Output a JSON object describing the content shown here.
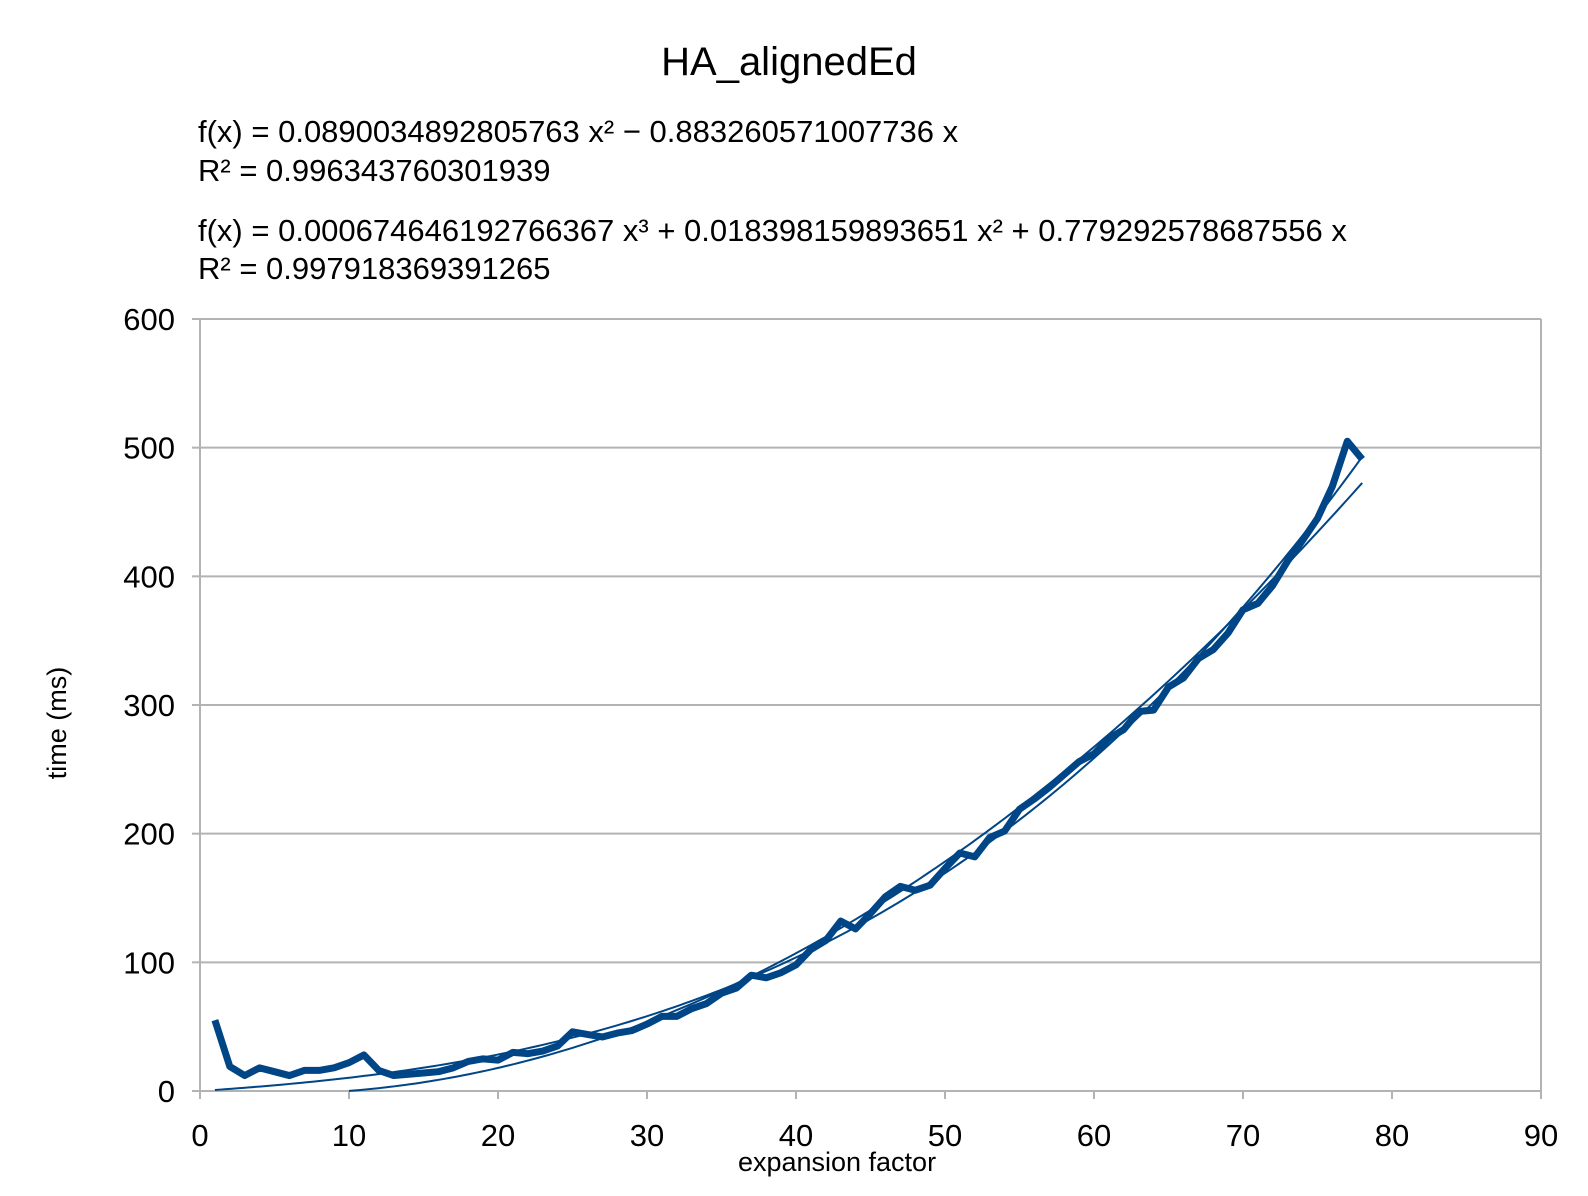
{
  "chart_data": {
    "type": "line",
    "title": "HA_alignedEd",
    "xlabel": "expansion factor",
    "ylabel": "time (ms)",
    "xlim": [
      0,
      90
    ],
    "ylim": [
      0,
      600
    ],
    "x_ticks": [
      0,
      10,
      20,
      30,
      40,
      50,
      60,
      70,
      80,
      90
    ],
    "y_ticks": [
      0,
      100,
      200,
      300,
      400,
      500,
      600
    ],
    "grid": {
      "horizontal": true,
      "vertical": false
    },
    "legend": "none",
    "series": [
      {
        "color": "#004586",
        "x": [
          1,
          2,
          3,
          4,
          5,
          6,
          7,
          8,
          9,
          10,
          11,
          12,
          13,
          14,
          15,
          16,
          17,
          18,
          19,
          20,
          21,
          22,
          23,
          24,
          25,
          26,
          27,
          28,
          29,
          30,
          31,
          32,
          33,
          34,
          35,
          36,
          37,
          38,
          39,
          40,
          41,
          42,
          43,
          44,
          45,
          46,
          47,
          48,
          49,
          50,
          51,
          52,
          53,
          54,
          55,
          56,
          57,
          58,
          59,
          60,
          61,
          62,
          63,
          64,
          65,
          66,
          67,
          68,
          69,
          70,
          71,
          72,
          73,
          74,
          75,
          76,
          77,
          78
        ],
        "values": [
          55,
          19,
          12,
          18,
          15,
          12,
          16,
          16,
          18,
          22,
          28,
          16,
          12,
          13,
          14,
          15,
          18,
          23,
          25,
          24,
          30,
          29,
          31,
          35,
          46,
          44,
          42,
          45,
          47,
          52,
          58,
          58,
          64,
          68,
          76,
          80,
          90,
          88,
          92,
          98,
          110,
          117,
          132,
          126,
          138,
          151,
          159,
          156,
          160,
          173,
          185,
          182,
          197,
          202,
          219,
          227,
          236,
          246,
          256,
          262,
          274,
          281,
          295,
          296,
          314,
          321,
          336,
          343,
          356,
          374,
          379,
          393,
          412,
          428,
          445,
          470,
          505,
          491
        ]
      }
    ],
    "trendlines": [
      {
        "type": "quadratic",
        "color": "#004586",
        "coefficients": {
          "a": 0.0890034892805763,
          "b": -0.883260571007736
        },
        "x_range": [
          10,
          78
        ],
        "equation": "f(x) = 0.0890034892805763 x² − 0.883260571007736 x",
        "r2": "R² = 0.996343760301939"
      },
      {
        "type": "cubic",
        "color": "#004586",
        "coefficients": {
          "a": 0.000674646192766367,
          "b": 0.018398159893651,
          "c": 0.779292578687556
        },
        "x_range": [
          1,
          78
        ],
        "equation": "f(x) = 0.000674646192766367 x³ + 0.018398159893651 x² + 0.779292578687556 x",
        "r2": "R² = 0.997918369391265"
      }
    ]
  },
  "colors": {
    "series": "#004586",
    "grid": "#b3b3b3",
    "axis": "#b3b3b3",
    "text": "#000000",
    "background": "#ffffff"
  }
}
